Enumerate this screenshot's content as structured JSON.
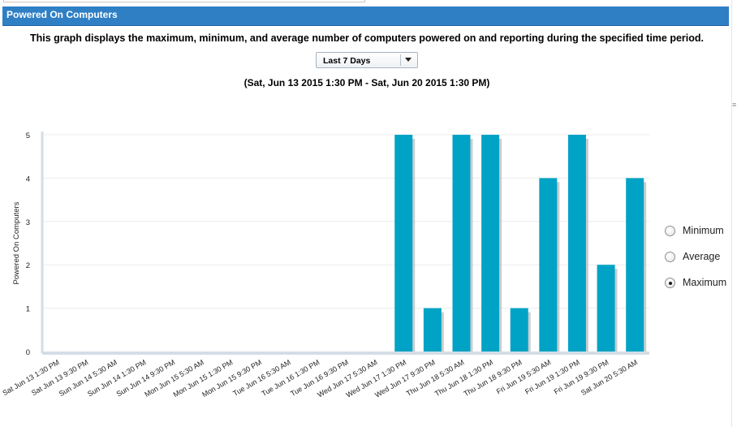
{
  "panel": {
    "title": "Powered On Computers",
    "description": "This graph displays the maximum, minimum, and average number of computers powered on and reporting during the specified time period."
  },
  "period_select": {
    "value": "Last 7 Days"
  },
  "date_range": "(Sat, Jun 13 2015 1:30 PM - Sat, Jun 20 2015 1:30 PM)",
  "options": [
    {
      "label": "Minimum",
      "selected": false
    },
    {
      "label": "Average",
      "selected": false
    },
    {
      "label": "Maximum",
      "selected": true
    }
  ],
  "colors": {
    "header": "#2f7fc5",
    "bar": "#00a3c5"
  },
  "chart_data": {
    "type": "bar",
    "ylabel": "Powered On Computers",
    "ylim": [
      0,
      5
    ],
    "yticks": [
      "0",
      "1",
      "2",
      "3",
      "4",
      "5"
    ],
    "grid": true,
    "categories": [
      "Sat Jun 13 1:30 PM",
      "Sat Jun 13 9:30 PM",
      "Sun Jun 14 5:30 AM",
      "Sun Jun 14 1:30 PM",
      "Sun Jun 14 9:30 PM",
      "Mon Jun 15 5:30 AM",
      "Mon Jun 15 1:30 PM",
      "Mon Jun 15 9:30 PM",
      "Tue Jun 16 5:30 AM",
      "Tue Jun 16 1:30 PM",
      "Tue Jun 16 9:30 PM",
      "Wed Jun 17 5:30 AM",
      "Wed Jun 17 1:30 PM",
      "Wed Jun 17 9:30 PM",
      "Thu Jun 18 5:30 AM",
      "Thu Jun 18 1:30 PM",
      "Thu Jun 18 9:30 PM",
      "Fri Jun 19 5:30 AM",
      "Fri Jun 19 1:30 PM",
      "Fri Jun 19 9:30 PM",
      "Sat Jun 20 5:30 AM"
    ],
    "values": [
      0,
      0,
      0,
      0,
      0,
      0,
      0,
      0,
      0,
      0,
      0,
      0,
      5,
      1,
      5,
      5,
      1,
      4,
      5,
      2,
      4
    ]
  }
}
